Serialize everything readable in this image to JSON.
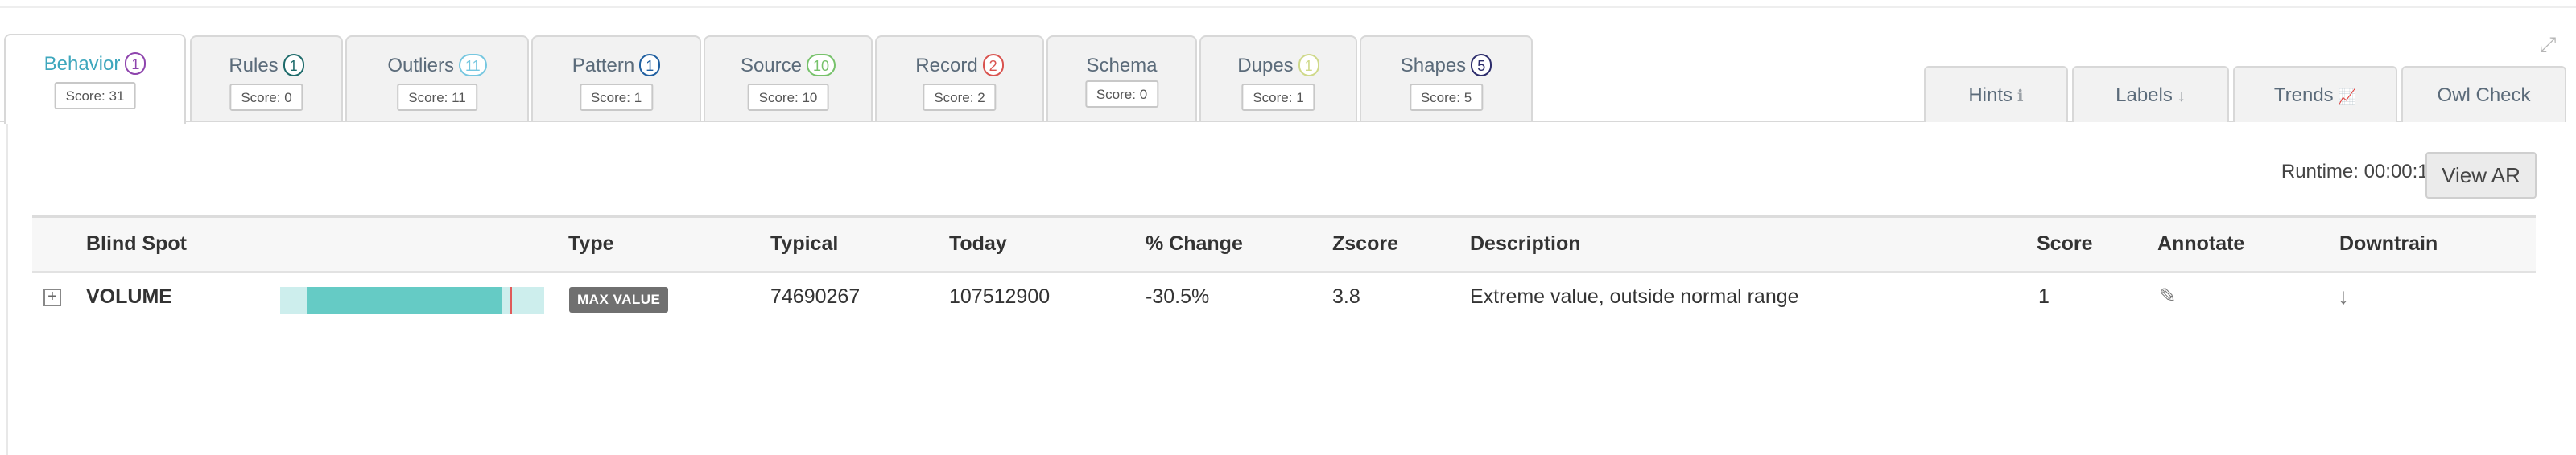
{
  "tabs": [
    {
      "label": "Behavior",
      "count": "1",
      "score": "Score: 31",
      "color": "#8e44ad",
      "active": true
    },
    {
      "label": "Rules",
      "count": "1",
      "score": "Score: 0",
      "color": "#1e6b6b"
    },
    {
      "label": "Outliers",
      "count": "11",
      "score": "Score: 11",
      "color": "#76c7e0"
    },
    {
      "label": "Pattern",
      "count": "1",
      "score": "Score: 1",
      "color": "#1f5fa0"
    },
    {
      "label": "Source",
      "count": "10",
      "score": "Score: 10",
      "color": "#77c26b"
    },
    {
      "label": "Record",
      "count": "2",
      "score": "Score: 2",
      "color": "#d9534f"
    },
    {
      "label": "Schema",
      "count": "",
      "score": "Score: 0",
      "color": "#999999"
    },
    {
      "label": "Dupes",
      "count": "1",
      "score": "Score: 1",
      "color": "#cfd98a"
    },
    {
      "label": "Shapes",
      "count": "5",
      "score": "Score: 5",
      "color": "#2c2c6b"
    }
  ],
  "right_tabs": [
    {
      "label": "Hints",
      "icon": "info-circle-icon",
      "glyph": "ℹ"
    },
    {
      "label": "Labels",
      "icon": "arrow-down-icon",
      "glyph": "↓"
    },
    {
      "label": "Trends",
      "icon": "line-chart-icon",
      "glyph": "📈"
    },
    {
      "label": "Owl Check",
      "icon": "",
      "glyph": ""
    }
  ],
  "runtime": "Runtime: 00:00:17",
  "view_ar_label": "View AR",
  "table": {
    "headers": {
      "blind_spot": "Blind Spot",
      "type": "Type",
      "typical": "Typical",
      "today": "Today",
      "pct_change": "% Change",
      "zscore": "Zscore",
      "description": "Description",
      "score": "Score",
      "annotate": "Annotate",
      "downtrain": "Downtrain"
    },
    "rows": [
      {
        "blind_spot": "VOLUME",
        "range_fill_start": 0.1,
        "range_fill_end": 0.84,
        "range_marker": 0.87,
        "type": "MAX VALUE",
        "typical": "74690267",
        "today": "107512900",
        "pct_change": "-30.5%",
        "zscore": "3.8",
        "description": "Extreme value, outside normal range",
        "score": "1"
      }
    ]
  },
  "colors": {
    "active_tab_text": "#3ea7bd",
    "bar_fill": "#65cbc5",
    "bar_bg": "#cdeeed",
    "bar_marker": "#e05a5a",
    "type_badge": "#707070"
  }
}
